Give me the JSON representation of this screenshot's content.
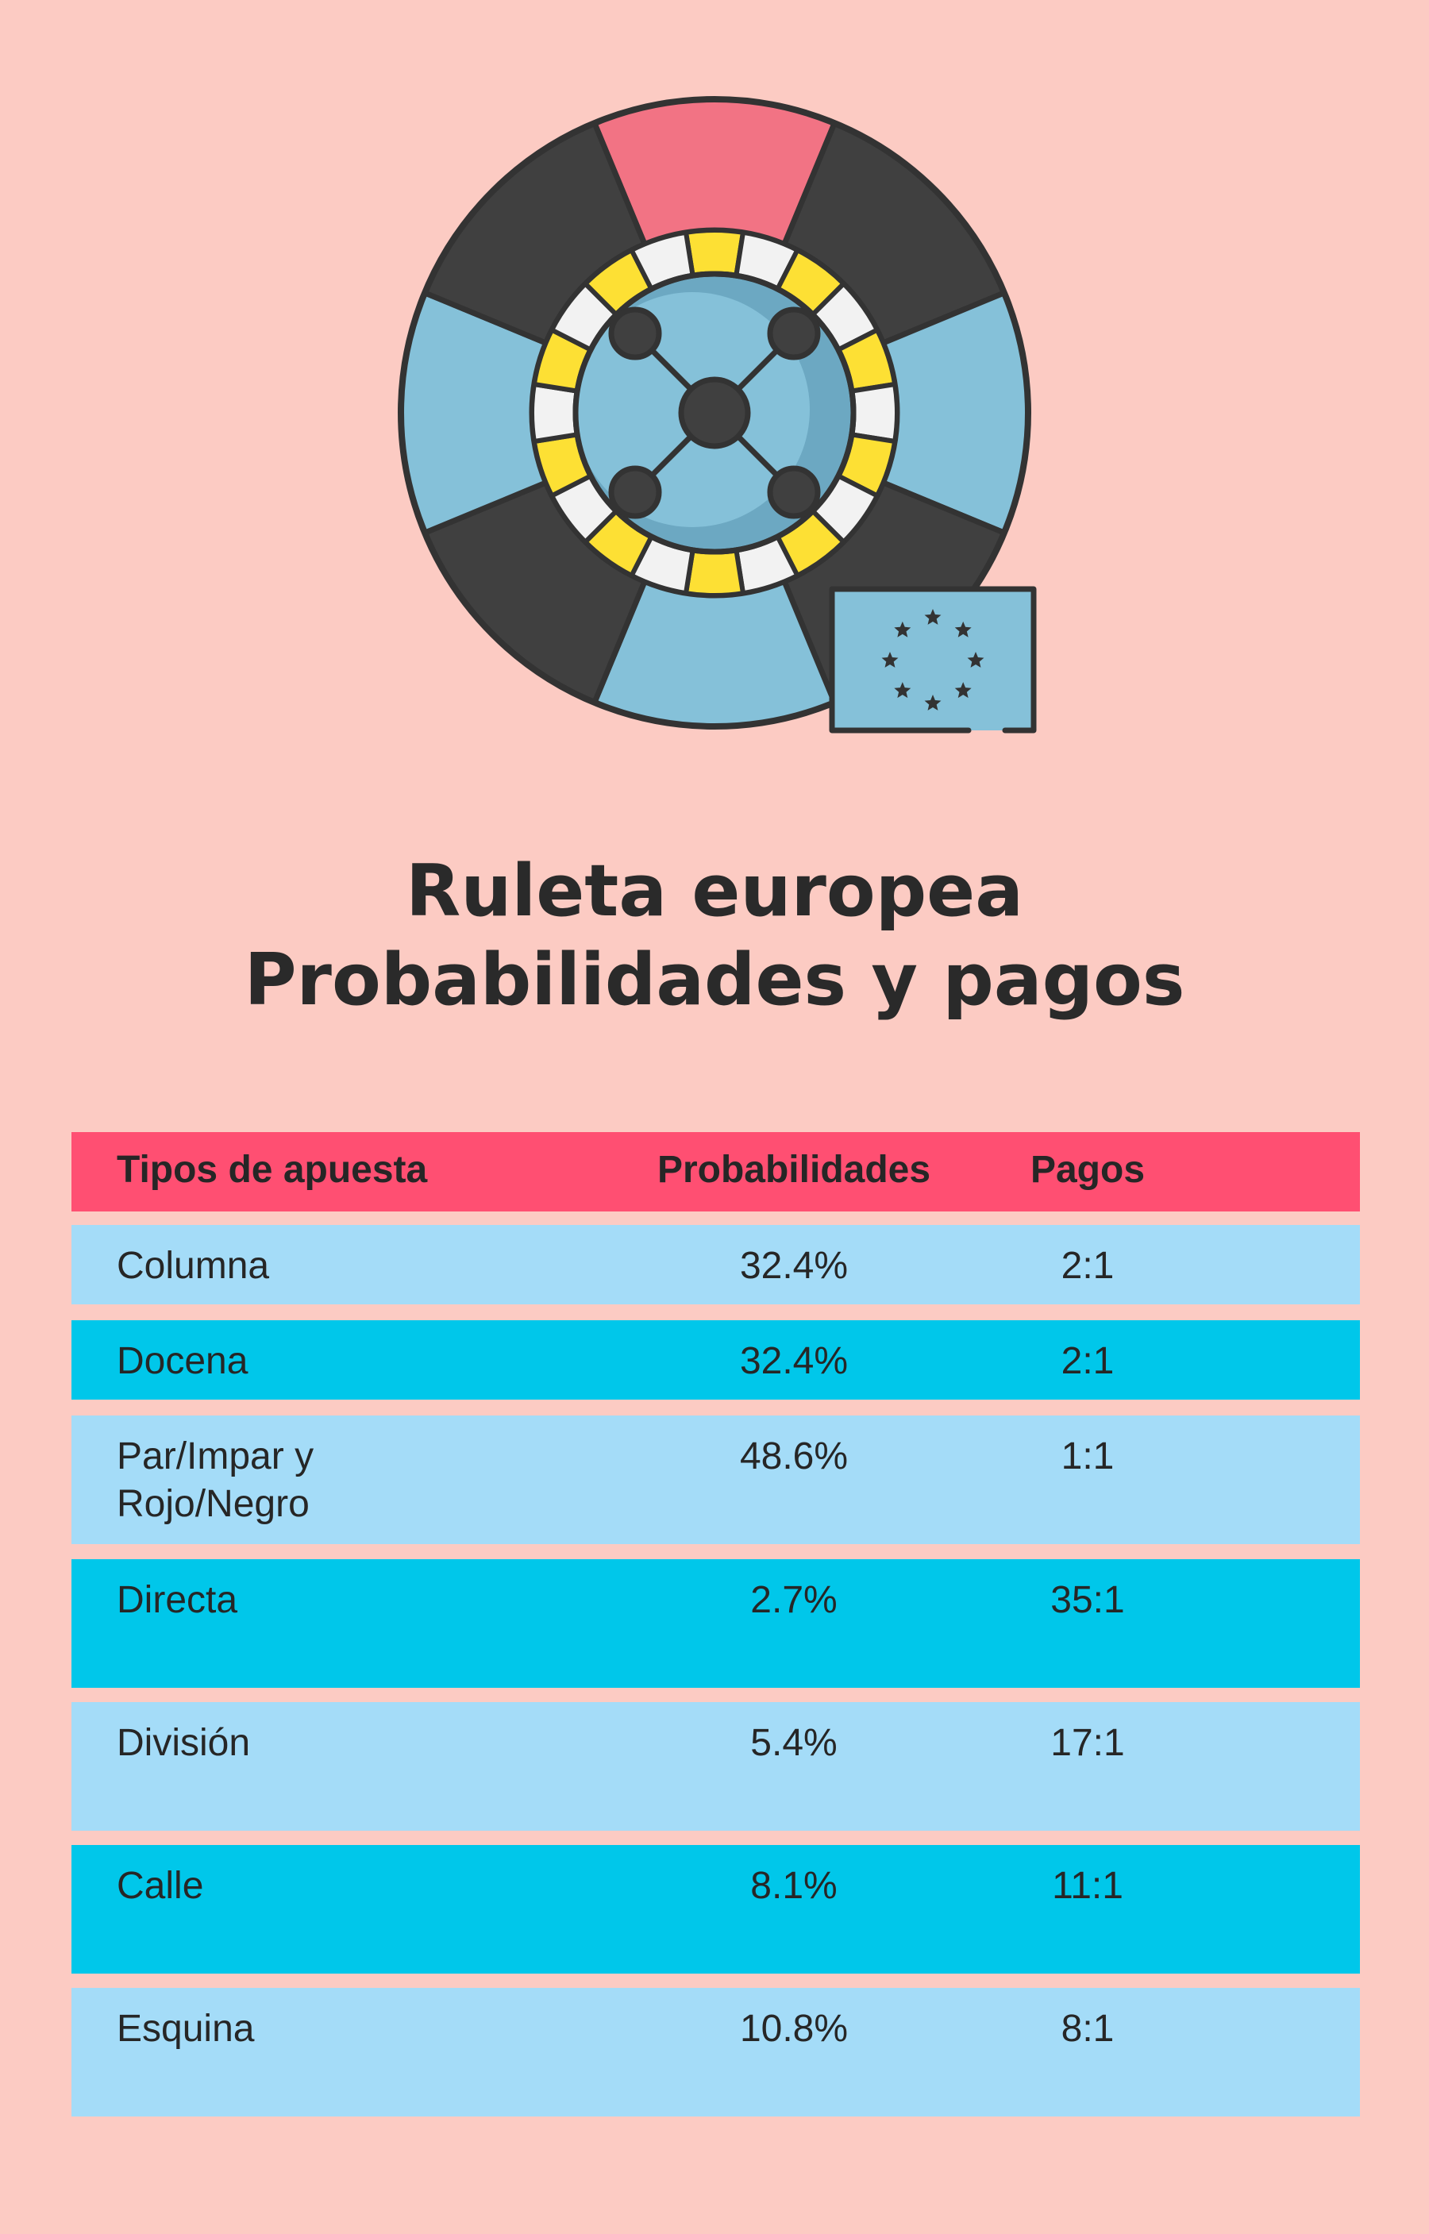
{
  "title": {
    "line1": "Ruleta europea",
    "line2": "Probabilidades y pagos"
  },
  "illustration": {
    "name": "roulette-wheel-with-eu-flag",
    "colors": {
      "outline": "#333333",
      "pocket_red": "#f27384",
      "pocket_black": "#404040",
      "pocket_blue": "#85c1d9",
      "ring_yellow": "#fde034",
      "ring_white": "#f2f2f2",
      "bowl": "#85c1d9",
      "bowl_shadow": "#6ca8c2",
      "flag": "#85c1d9"
    }
  },
  "table": {
    "headers": {
      "bet_type": "Tipos de apuesta",
      "probability": "Probabilidades",
      "payout": "Pagos"
    },
    "rows": [
      {
        "bet_type": "Columna",
        "probability": "32.4%",
        "payout": "2:1"
      },
      {
        "bet_type": "Docena",
        "probability": "32.4%",
        "payout": "2:1"
      },
      {
        "bet_type_line1": "Par/Impar y",
        "bet_type_line2": "Rojo/Negro",
        "probability": "48.6%",
        "payout": "1:1"
      },
      {
        "bet_type": "Directa",
        "probability": "2.7%",
        "payout": "35:1"
      },
      {
        "bet_type": "División",
        "probability": "5.4%",
        "payout": "17:1"
      },
      {
        "bet_type": "Calle",
        "probability": "8.1%",
        "payout": "11:1"
      },
      {
        "bet_type": "Esquina",
        "probability": "10.8%",
        "payout": "8:1"
      }
    ],
    "colors": {
      "header_bg": "#ff4f72",
      "row_light": "#a4dcf8",
      "row_dark": "#00c7ea"
    }
  }
}
